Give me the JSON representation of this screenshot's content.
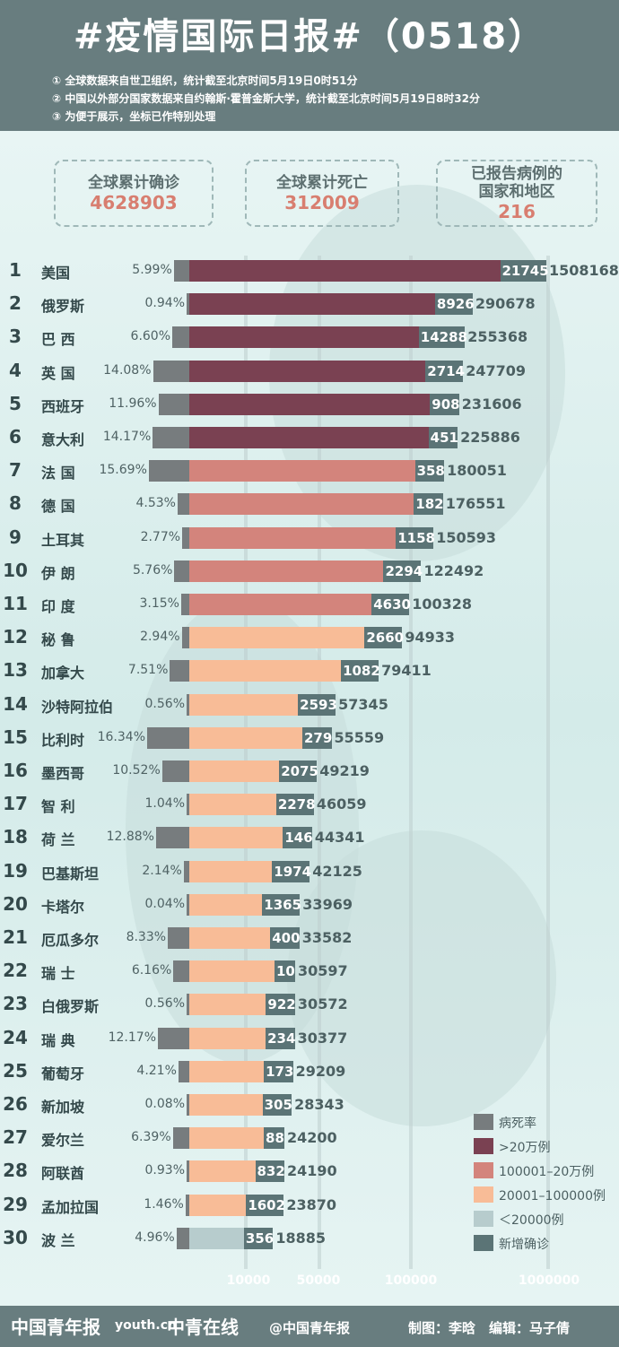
{
  "header": {
    "title": "#疫情国际日报#（0518）",
    "notes": [
      "① 全球数据来自世卫组织，统计截至北京时间5月19日0时51分",
      "② 中国以外部分国家数据来自约翰斯·霍普金斯大学，统计截至北京时间5月19日8时32分",
      "③ 为便于展示，坐标已作特别处理"
    ]
  },
  "stats": [
    {
      "label": "全球累计确诊",
      "value": "4628903"
    },
    {
      "label": "全球累计死亡",
      "value": "312009"
    },
    {
      "label": "已报告病例的",
      "label2": "国家和地区",
      "value": "216"
    }
  ],
  "colors": {
    "header_bg": "#687d7f",
    "rate_bar": "#777c7e",
    "cat_over_200k": "#7a4152",
    "cat_100k_200k": "#d3847c",
    "cat_20k_100k": "#f8bc97",
    "cat_under_20k": "#b7cccd",
    "new_cases": "#5b7476",
    "stat_value": "#d87e70"
  },
  "chart_data": {
    "type": "bar",
    "x_scale": "log",
    "x_ticks": [
      "10000",
      "50000",
      "100000",
      "1000000"
    ],
    "legend": [
      {
        "label": "病死率",
        "color": "#777c7e"
      },
      {
        "label": ">20万例",
        "color": "#7a4152"
      },
      {
        "label": "100001–20万例",
        "color": "#d3847c"
      },
      {
        "label": "20001–100000例",
        "color": "#f8bc97"
      },
      {
        "label": "＜20000例",
        "color": "#b7cccd"
      },
      {
        "label": "新增确诊",
        "color": "#5b7476"
      }
    ],
    "legend_position": "bottom-right",
    "rows": [
      {
        "rank": "1",
        "country": "美国",
        "rate": "5.99%",
        "rate_value": 5.99,
        "new": "21745",
        "total": "1508168",
        "total_value": 1508168,
        "category": "cat_over_200k"
      },
      {
        "rank": "2",
        "country": "俄罗斯",
        "rate": "0.94%",
        "rate_value": 0.94,
        "new": "8926",
        "total": "290678",
        "total_value": 290678,
        "category": "cat_over_200k"
      },
      {
        "rank": "3",
        "country": "巴 西",
        "rate": "6.60%",
        "rate_value": 6.6,
        "new": "14288",
        "total": "255368",
        "total_value": 255368,
        "category": "cat_over_200k"
      },
      {
        "rank": "4",
        "country": "英 国",
        "rate": "14.08%",
        "rate_value": 14.08,
        "new": "2714",
        "total": "247709",
        "total_value": 247709,
        "category": "cat_over_200k"
      },
      {
        "rank": "5",
        "country": "西班牙",
        "rate": "11.96%",
        "rate_value": 11.96,
        "new": "908",
        "total": "231606",
        "total_value": 231606,
        "category": "cat_over_200k"
      },
      {
        "rank": "6",
        "country": "意大利",
        "rate": "14.17%",
        "rate_value": 14.17,
        "new": "451",
        "total": "225886",
        "total_value": 225886,
        "category": "cat_over_200k"
      },
      {
        "rank": "7",
        "country": "法 国",
        "rate": "15.69%",
        "rate_value": 15.69,
        "new": "358",
        "total": "180051",
        "total_value": 180051,
        "category": "cat_100k_200k"
      },
      {
        "rank": "8",
        "country": "德 国",
        "rate": "4.53%",
        "rate_value": 4.53,
        "new": "182",
        "total": "176551",
        "total_value": 176551,
        "category": "cat_100k_200k"
      },
      {
        "rank": "9",
        "country": "土耳其",
        "rate": "2.77%",
        "rate_value": 2.77,
        "new": "1158",
        "total": "150593",
        "total_value": 150593,
        "category": "cat_100k_200k"
      },
      {
        "rank": "10",
        "country": "伊 朗",
        "rate": "5.76%",
        "rate_value": 5.76,
        "new": "2294",
        "total": "122492",
        "total_value": 122492,
        "category": "cat_100k_200k"
      },
      {
        "rank": "11",
        "country": "印 度",
        "rate": "3.15%",
        "rate_value": 3.15,
        "new": "4630",
        "total": "100328",
        "total_value": 100328,
        "category": "cat_100k_200k"
      },
      {
        "rank": "12",
        "country": "秘 鲁",
        "rate": "2.94%",
        "rate_value": 2.94,
        "new": "2660",
        "total": "94933",
        "total_value": 94933,
        "category": "cat_20k_100k"
      },
      {
        "rank": "13",
        "country": "加拿大",
        "rate": "7.51%",
        "rate_value": 7.51,
        "new": "1082",
        "total": "79411",
        "total_value": 79411,
        "category": "cat_20k_100k"
      },
      {
        "rank": "14",
        "country": "沙特阿拉伯",
        "rate": "0.56%",
        "rate_value": 0.56,
        "new": "2593",
        "total": "57345",
        "total_value": 57345,
        "category": "cat_20k_100k"
      },
      {
        "rank": "15",
        "country": "比利时",
        "rate": "16.34%",
        "rate_value": 16.34,
        "new": "279",
        "total": "55559",
        "total_value": 55559,
        "category": "cat_20k_100k"
      },
      {
        "rank": "16",
        "country": "墨西哥",
        "rate": "10.52%",
        "rate_value": 10.52,
        "new": "2075",
        "total": "49219",
        "total_value": 49219,
        "category": "cat_20k_100k"
      },
      {
        "rank": "17",
        "country": "智 利",
        "rate": "1.04%",
        "rate_value": 1.04,
        "new": "2278",
        "total": "46059",
        "total_value": 46059,
        "category": "cat_20k_100k"
      },
      {
        "rank": "18",
        "country": "荷 兰",
        "rate": "12.88%",
        "rate_value": 12.88,
        "new": "146",
        "total": "44341",
        "total_value": 44341,
        "category": "cat_20k_100k"
      },
      {
        "rank": "19",
        "country": "巴基斯坦",
        "rate": "2.14%",
        "rate_value": 2.14,
        "new": "1974",
        "total": "42125",
        "total_value": 42125,
        "category": "cat_20k_100k"
      },
      {
        "rank": "20",
        "country": "卡塔尔",
        "rate": "0.04%",
        "rate_value": 0.04,
        "new": "1365",
        "total": "33969",
        "total_value": 33969,
        "category": "cat_20k_100k"
      },
      {
        "rank": "21",
        "country": "厄瓜多尔",
        "rate": "8.33%",
        "rate_value": 8.33,
        "new": "400",
        "total": "33582",
        "total_value": 33582,
        "category": "cat_20k_100k"
      },
      {
        "rank": "22",
        "country": "瑞 士",
        "rate": "6.16%",
        "rate_value": 6.16,
        "new": "10",
        "total": "30597",
        "total_value": 30597,
        "category": "cat_20k_100k"
      },
      {
        "rank": "23",
        "country": "白俄罗斯",
        "rate": "0.56%",
        "rate_value": 0.56,
        "new": "922",
        "total": "30572",
        "total_value": 30572,
        "category": "cat_20k_100k"
      },
      {
        "rank": "24",
        "country": "瑞 典",
        "rate": "12.17%",
        "rate_value": 12.17,
        "new": "234",
        "total": "30377",
        "total_value": 30377,
        "category": "cat_20k_100k"
      },
      {
        "rank": "25",
        "country": "葡萄牙",
        "rate": "4.21%",
        "rate_value": 4.21,
        "new": "173",
        "total": "29209",
        "total_value": 29209,
        "category": "cat_20k_100k"
      },
      {
        "rank": "26",
        "country": "新加坡",
        "rate": "0.08%",
        "rate_value": 0.08,
        "new": "305",
        "total": "28343",
        "total_value": 28343,
        "category": "cat_20k_100k"
      },
      {
        "rank": "27",
        "country": "爱尔兰",
        "rate": "6.39%",
        "rate_value": 6.39,
        "new": "88",
        "total": "24200",
        "total_value": 24200,
        "category": "cat_20k_100k"
      },
      {
        "rank": "28",
        "country": "阿联酋",
        "rate": "0.93%",
        "rate_value": 0.93,
        "new": "832",
        "total": "24190",
        "total_value": 24190,
        "category": "cat_20k_100k"
      },
      {
        "rank": "29",
        "country": "孟加拉国",
        "rate": "1.46%",
        "rate_value": 1.46,
        "new": "1602",
        "total": "23870",
        "total_value": 23870,
        "category": "cat_20k_100k"
      },
      {
        "rank": "30",
        "country": "波 兰",
        "rate": "4.96%",
        "rate_value": 4.96,
        "new": "356",
        "total": "18885",
        "total_value": 18885,
        "category": "cat_under_20k"
      }
    ]
  },
  "footer": {
    "logo1": "中国青年报",
    "logo2": "youth.cn",
    "logo3": "中青在线",
    "weibo": "@中国青年报",
    "credit": "制图：李晗　编辑：马子倩"
  }
}
